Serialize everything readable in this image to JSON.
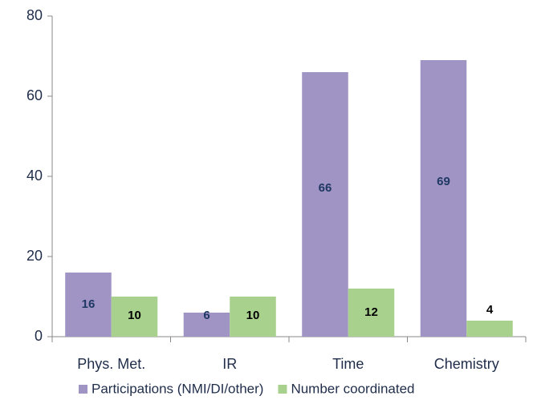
{
  "chart_data": {
    "type": "bar",
    "categories": [
      "Phys. Met.",
      "IR",
      "Time",
      "Chemistry"
    ],
    "series": [
      {
        "name": "Participations (NMI/DI/other)",
        "color": "#a094c4",
        "label_color": "#1f3864",
        "values": [
          16,
          6,
          66,
          69
        ]
      },
      {
        "name": "Number coordinated",
        "color": "#a9d18e",
        "label_color": "#000000",
        "values": [
          10,
          10,
          12,
          4
        ]
      }
    ],
    "ylim": [
      0,
      80
    ],
    "yticks": [
      0,
      20,
      40,
      60,
      80
    ],
    "legend": "bottom"
  }
}
